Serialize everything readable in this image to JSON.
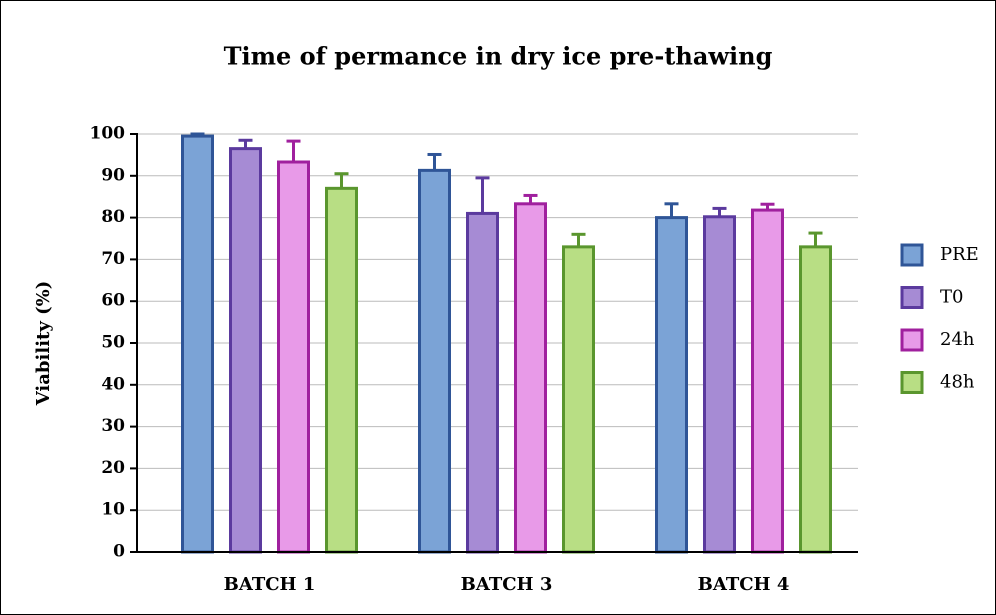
{
  "chart_data": {
    "type": "bar",
    "title": "Time of permance in dry ice pre-thawing",
    "y_label": "Viability (%)",
    "categories": [
      "BATCH 1",
      "BATCH 3",
      "BATCH 4"
    ],
    "series": [
      {
        "name": "PRE",
        "color": "#7ba3d6",
        "edge": "#2f5597",
        "values": [
          99.5,
          91.3,
          80
        ],
        "errors": [
          0.5,
          3.8,
          3.3
        ]
      },
      {
        "name": "T0",
        "color": "#a68bd4",
        "edge": "#5b3a9e",
        "values": [
          96.5,
          81,
          80.2
        ],
        "errors": [
          2,
          8.5,
          2
        ]
      },
      {
        "name": "24h",
        "color": "#e89ae8",
        "edge": "#a0209e",
        "values": [
          93.3,
          83.3,
          81.8
        ],
        "errors": [
          5,
          2,
          1.4
        ]
      },
      {
        "name": "48h",
        "color": "#b8de84",
        "edge": "#5a962e",
        "values": [
          87,
          73,
          73
        ],
        "errors": [
          3.5,
          3,
          3.3
        ]
      }
    ],
    "ylim": [
      0,
      100
    ],
    "yticks": [
      0,
      10,
      20,
      30,
      40,
      50,
      60,
      70,
      80,
      90,
      100
    ],
    "grid": true,
    "legend": "right"
  }
}
